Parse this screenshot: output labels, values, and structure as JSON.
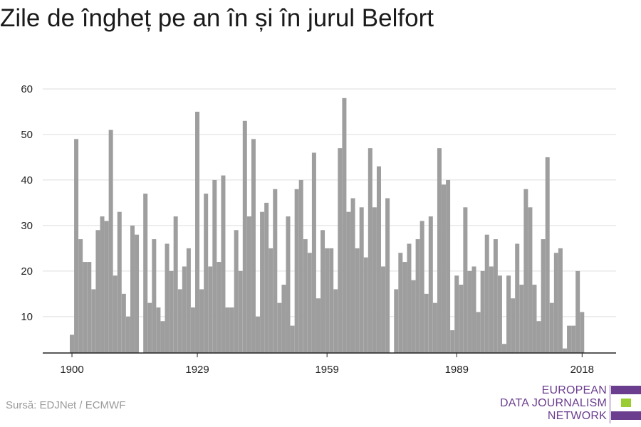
{
  "title": "Zile de îngheț pe an în și în jurul Belfort",
  "source": "Sursă: EDJNet / ECMWF",
  "logo": {
    "lines": [
      "EUROPEAN",
      "DATA JOURNALISM",
      "NETWORK"
    ],
    "colors": {
      "purple": "#6b3d8e",
      "green": "#9acd32"
    }
  },
  "colors": {
    "bar": "#9e9e9e",
    "grid": "#dedede",
    "axis": "#222222"
  },
  "chart_data": {
    "type": "bar",
    "title": "Zile de îngheț pe an în și în jurul Belfort",
    "xlabel": "",
    "ylabel": "",
    "ylim": [
      2,
      60
    ],
    "yticks": [
      10,
      20,
      30,
      40,
      50,
      60
    ],
    "xticks": [
      1900,
      1929,
      1959,
      1989,
      2018
    ],
    "grid": true,
    "x": [
      1900,
      1901,
      1902,
      1903,
      1904,
      1905,
      1906,
      1907,
      1908,
      1909,
      1910,
      1911,
      1912,
      1913,
      1914,
      1915,
      1916,
      1917,
      1918,
      1919,
      1920,
      1921,
      1922,
      1923,
      1924,
      1925,
      1926,
      1927,
      1928,
      1929,
      1930,
      1931,
      1932,
      1933,
      1934,
      1935,
      1936,
      1937,
      1938,
      1939,
      1940,
      1941,
      1942,
      1943,
      1944,
      1945,
      1946,
      1947,
      1948,
      1949,
      1950,
      1951,
      1952,
      1953,
      1954,
      1955,
      1956,
      1957,
      1958,
      1959,
      1960,
      1961,
      1962,
      1963,
      1964,
      1965,
      1966,
      1967,
      1968,
      1969,
      1970,
      1971,
      1972,
      1973,
      1974,
      1975,
      1976,
      1977,
      1978,
      1979,
      1980,
      1981,
      1982,
      1983,
      1984,
      1985,
      1986,
      1987,
      1988,
      1989,
      1990,
      1991,
      1992,
      1993,
      1994,
      1995,
      1996,
      1997,
      1998,
      1999,
      2000,
      2001,
      2002,
      2003,
      2004,
      2005,
      2006,
      2007,
      2008,
      2009,
      2010,
      2011,
      2012,
      2013,
      2014,
      2015,
      2016,
      2017,
      2018
    ],
    "values": [
      6,
      49,
      27,
      22,
      22,
      16,
      29,
      32,
      31,
      51,
      19,
      33,
      15,
      10,
      30,
      28,
      2,
      37,
      13,
      27,
      12,
      9,
      26,
      20,
      32,
      16,
      21,
      25,
      12,
      55,
      16,
      37,
      21,
      40,
      22,
      41,
      12,
      12,
      29,
      20,
      53,
      32,
      49,
      10,
      33,
      35,
      25,
      38,
      13,
      17,
      32,
      8,
      38,
      40,
      27,
      24,
      46,
      14,
      29,
      25,
      25,
      16,
      47,
      58,
      33,
      36,
      25,
      34,
      23,
      47,
      34,
      43,
      21,
      36,
      2,
      16,
      24,
      22,
      26,
      18,
      27,
      31,
      15,
      32,
      13,
      47,
      39,
      40,
      7,
      19,
      17,
      34,
      20,
      21,
      11,
      20,
      28,
      21,
      27,
      19,
      4,
      19,
      14,
      26,
      17,
      38,
      34,
      17,
      9,
      27,
      45,
      13,
      24,
      25,
      3,
      8,
      8,
      20,
      11
    ]
  }
}
